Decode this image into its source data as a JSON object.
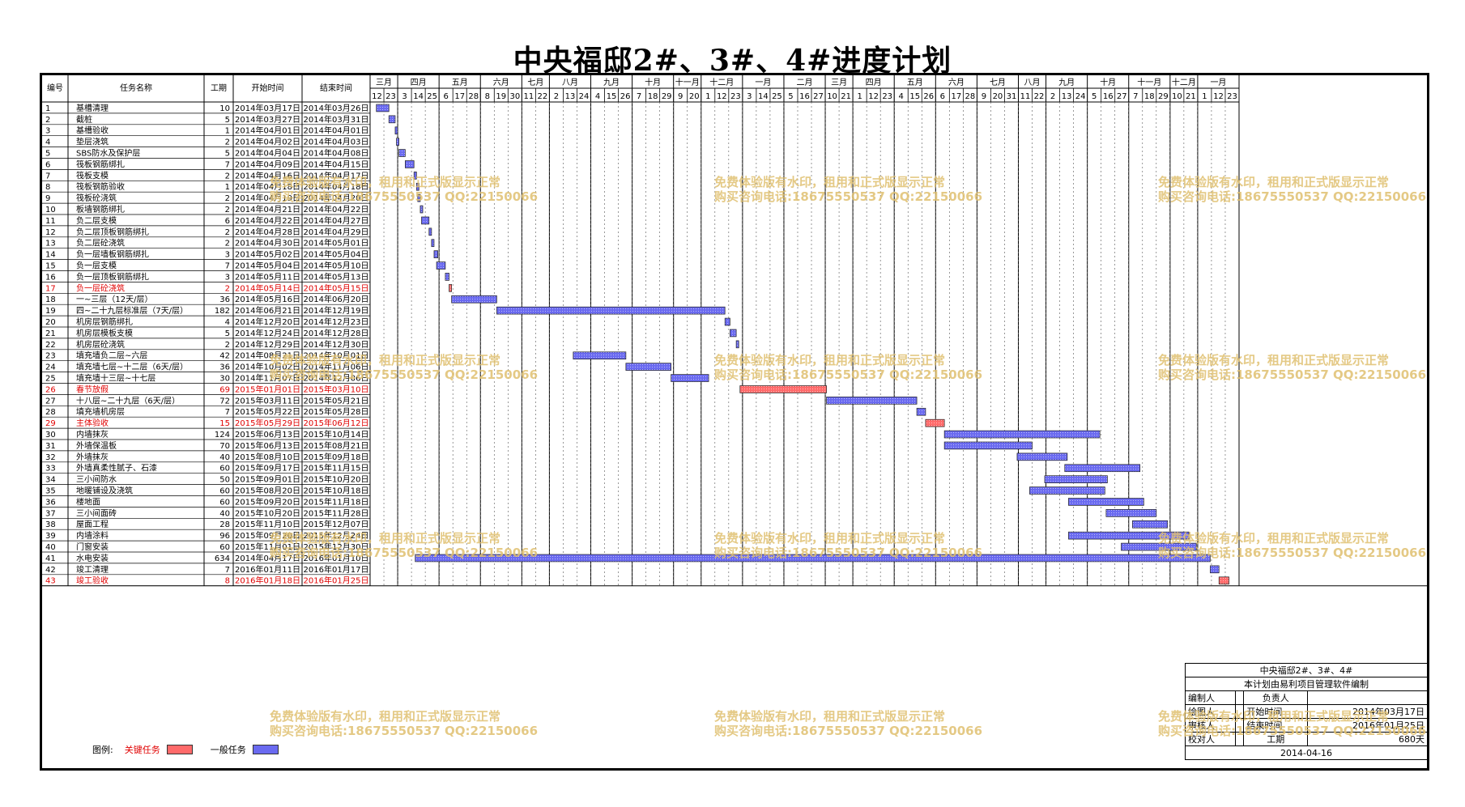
{
  "title": "中央福邸2#、3#、4#进度计划",
  "columns": {
    "no": "编号",
    "name": "任务名称",
    "dur": "工期",
    "start": "开始时间",
    "end": "结束时间"
  },
  "timeline": {
    "start_date": "2014-03-12",
    "months": [
      {
        "label": "三月",
        "days": [
          "12",
          "23"
        ]
      },
      {
        "label": "四月",
        "days": [
          "3",
          "14",
          "25"
        ]
      },
      {
        "label": "五月",
        "days": [
          "6",
          "17",
          "28"
        ]
      },
      {
        "label": "六月",
        "days": [
          "8",
          "19",
          "30"
        ]
      },
      {
        "label": "七月",
        "days": [
          "11",
          "22"
        ]
      },
      {
        "label": "八月",
        "days": [
          "2",
          "13",
          "24"
        ]
      },
      {
        "label": "九月",
        "days": [
          "4",
          "15",
          "26"
        ]
      },
      {
        "label": "十月",
        "days": [
          "7",
          "18",
          "29"
        ]
      },
      {
        "label": "十一月",
        "days": [
          "9",
          "20"
        ]
      },
      {
        "label": "十二月",
        "days": [
          "1",
          "12",
          "23"
        ]
      },
      {
        "label": "一月",
        "days": [
          "3",
          "14",
          "25"
        ]
      },
      {
        "label": "二月",
        "days": [
          "5",
          "16",
          "27"
        ]
      },
      {
        "label": "三月",
        "days": [
          "10",
          "21"
        ]
      },
      {
        "label": "四月",
        "days": [
          "1",
          "12",
          "23"
        ]
      },
      {
        "label": "五月",
        "days": [
          "4",
          "15",
          "26"
        ]
      },
      {
        "label": "六月",
        "days": [
          "6",
          "17",
          "28"
        ]
      },
      {
        "label": "七月",
        "days": [
          "9",
          "20",
          "31"
        ]
      },
      {
        "label": "八月",
        "days": [
          "11",
          "22"
        ]
      },
      {
        "label": "九月",
        "days": [
          "2",
          "13",
          "24"
        ]
      },
      {
        "label": "十月",
        "days": [
          "5",
          "16",
          "27"
        ]
      },
      {
        "label": "十一月",
        "days": [
          "7",
          "18",
          "29"
        ]
      },
      {
        "label": "十二月",
        "days": [
          "10",
          "21"
        ]
      },
      {
        "label": "一月",
        "days": [
          "1",
          "12",
          "23"
        ]
      }
    ]
  },
  "tasks": [
    {
      "no": "1",
      "name": "基槽清理",
      "dur": "10",
      "start": "2014年03月17日",
      "end": "2014年03月26日",
      "s": "2014-03-17",
      "e": "2014-03-26",
      "critical": false
    },
    {
      "no": "2",
      "name": "截桩",
      "dur": "5",
      "start": "2014年03月27日",
      "end": "2014年03月31日",
      "s": "2014-03-27",
      "e": "2014-03-31",
      "critical": false
    },
    {
      "no": "3",
      "name": "基槽验收",
      "dur": "1",
      "start": "2014年04月01日",
      "end": "2014年04月01日",
      "s": "2014-04-01",
      "e": "2014-04-01",
      "critical": false
    },
    {
      "no": "4",
      "name": "垫层浇筑",
      "dur": "2",
      "start": "2014年04月02日",
      "end": "2014年04月03日",
      "s": "2014-04-02",
      "e": "2014-04-03",
      "critical": false
    },
    {
      "no": "5",
      "name": "SBS防水及保护层",
      "dur": "5",
      "start": "2014年04月04日",
      "end": "2014年04月08日",
      "s": "2014-04-04",
      "e": "2014-04-08",
      "critical": false
    },
    {
      "no": "6",
      "name": "筏板钢筋绑扎",
      "dur": "7",
      "start": "2014年04月09日",
      "end": "2014年04月15日",
      "s": "2014-04-09",
      "e": "2014-04-15",
      "critical": false
    },
    {
      "no": "7",
      "name": "筏板支模",
      "dur": "2",
      "start": "2014年04月16日",
      "end": "2014年04月17日",
      "s": "2014-04-16",
      "e": "2014-04-17",
      "critical": false
    },
    {
      "no": "8",
      "name": "筏板钢筋验收",
      "dur": "1",
      "start": "2014年04月18日",
      "end": "2014年04月18日",
      "s": "2014-04-18",
      "e": "2014-04-18",
      "critical": false
    },
    {
      "no": "9",
      "name": "筏板砼浇筑",
      "dur": "2",
      "start": "2014年04月19日",
      "end": "2014年04月20日",
      "s": "2014-04-19",
      "e": "2014-04-20",
      "critical": false
    },
    {
      "no": "10",
      "name": "板墙钢筋绑扎",
      "dur": "2",
      "start": "2014年04月21日",
      "end": "2014年04月22日",
      "s": "2014-04-21",
      "e": "2014-04-22",
      "critical": false
    },
    {
      "no": "11",
      "name": "负二层支模",
      "dur": "6",
      "start": "2014年04月22日",
      "end": "2014年04月27日",
      "s": "2014-04-22",
      "e": "2014-04-27",
      "critical": false
    },
    {
      "no": "12",
      "name": "负二层顶板钢筋绑扎",
      "dur": "2",
      "start": "2014年04月28日",
      "end": "2014年04月29日",
      "s": "2014-04-28",
      "e": "2014-04-29",
      "critical": false
    },
    {
      "no": "13",
      "name": "负二层砼浇筑",
      "dur": "2",
      "start": "2014年04月30日",
      "end": "2014年05月01日",
      "s": "2014-04-30",
      "e": "2014-05-01",
      "critical": false
    },
    {
      "no": "14",
      "name": "负一层墙板钢筋绑扎",
      "dur": "3",
      "start": "2014年05月02日",
      "end": "2014年05月04日",
      "s": "2014-05-02",
      "e": "2014-05-04",
      "critical": false
    },
    {
      "no": "15",
      "name": "负一层支模",
      "dur": "7",
      "start": "2014年05月04日",
      "end": "2014年05月10日",
      "s": "2014-05-04",
      "e": "2014-05-10",
      "critical": false
    },
    {
      "no": "16",
      "name": "负一层顶板钢筋绑扎",
      "dur": "3",
      "start": "2014年05月11日",
      "end": "2014年05月13日",
      "s": "2014-05-11",
      "e": "2014-05-13",
      "critical": false
    },
    {
      "no": "17",
      "name": "负一层砼浇筑",
      "dur": "2",
      "start": "2014年05月14日",
      "end": "2014年05月15日",
      "s": "2014-05-14",
      "e": "2014-05-15",
      "critical": true
    },
    {
      "no": "18",
      "name": "一~三层（12天/层）",
      "dur": "36",
      "start": "2014年05月16日",
      "end": "2014年06月20日",
      "s": "2014-05-16",
      "e": "2014-06-20",
      "critical": false
    },
    {
      "no": "19",
      "name": "四~二十九层标准层（7天/层）",
      "dur": "182",
      "start": "2014年06月21日",
      "end": "2014年12月19日",
      "s": "2014-06-21",
      "e": "2014-12-19",
      "critical": false
    },
    {
      "no": "20",
      "name": "机房层钢筋绑扎",
      "dur": "4",
      "start": "2014年12月20日",
      "end": "2014年12月23日",
      "s": "2014-12-20",
      "e": "2014-12-23",
      "critical": false
    },
    {
      "no": "21",
      "name": "机房层模板支模",
      "dur": "5",
      "start": "2014年12月24日",
      "end": "2014年12月28日",
      "s": "2014-12-24",
      "e": "2014-12-28",
      "critical": false
    },
    {
      "no": "22",
      "name": "机房层砼浇筑",
      "dur": "2",
      "start": "2014年12月29日",
      "end": "2014年12月30日",
      "s": "2014-12-29",
      "e": "2014-12-30",
      "critical": false
    },
    {
      "no": "23",
      "name": "填充墙负二层~六层",
      "dur": "42",
      "start": "2014年08月21日",
      "end": "2014年10月01日",
      "s": "2014-08-21",
      "e": "2014-10-01",
      "critical": false
    },
    {
      "no": "24",
      "name": "填充墙七层~十二层（6天/层）",
      "dur": "36",
      "start": "2014年10月02日",
      "end": "2014年11月06日",
      "s": "2014-10-02",
      "e": "2014-11-06",
      "critical": false
    },
    {
      "no": "25",
      "name": "填充墙十三层~十七层",
      "dur": "30",
      "start": "2014年11月07日",
      "end": "2014年12月06日",
      "s": "2014-11-07",
      "e": "2014-12-06",
      "critical": false
    },
    {
      "no": "26",
      "name": "春节放假",
      "dur": "69",
      "start": "2015年01月01日",
      "end": "2015年03月10日",
      "s": "2015-01-01",
      "e": "2015-03-10",
      "critical": true
    },
    {
      "no": "27",
      "name": "十八层~二十九层（6天/层）",
      "dur": "72",
      "start": "2015年03月11日",
      "end": "2015年05月21日",
      "s": "2015-03-11",
      "e": "2015-05-21",
      "critical": false
    },
    {
      "no": "28",
      "name": "填充墙机房层",
      "dur": "7",
      "start": "2015年05月22日",
      "end": "2015年05月28日",
      "s": "2015-05-22",
      "e": "2015-05-28",
      "critical": false
    },
    {
      "no": "29",
      "name": "主体验收",
      "dur": "15",
      "start": "2015年05月29日",
      "end": "2015年06月12日",
      "s": "2015-05-29",
      "e": "2015-06-12",
      "critical": true
    },
    {
      "no": "30",
      "name": "内墙抹灰",
      "dur": "124",
      "start": "2015年06月13日",
      "end": "2015年10月14日",
      "s": "2015-06-13",
      "e": "2015-10-14",
      "critical": false
    },
    {
      "no": "31",
      "name": "外墙保温板",
      "dur": "70",
      "start": "2015年06月13日",
      "end": "2015年08月21日",
      "s": "2015-06-13",
      "e": "2015-08-21",
      "critical": false
    },
    {
      "no": "32",
      "name": "外墙抹灰",
      "dur": "40",
      "start": "2015年08月10日",
      "end": "2015年09月18日",
      "s": "2015-08-10",
      "e": "2015-09-18",
      "critical": false
    },
    {
      "no": "33",
      "name": "外墙真柔性腻子、石漆",
      "dur": "60",
      "start": "2015年09月17日",
      "end": "2015年11月15日",
      "s": "2015-09-17",
      "e": "2015-11-15",
      "critical": false
    },
    {
      "no": "34",
      "name": "三小间防水",
      "dur": "50",
      "start": "2015年09月01日",
      "end": "2015年10月20日",
      "s": "2015-09-01",
      "e": "2015-10-20",
      "critical": false
    },
    {
      "no": "35",
      "name": "地暖铺设及浇筑",
      "dur": "60",
      "start": "2015年08月20日",
      "end": "2015年10月18日",
      "s": "2015-08-20",
      "e": "2015-10-18",
      "critical": false
    },
    {
      "no": "36",
      "name": "楼地面",
      "dur": "60",
      "start": "2015年09月20日",
      "end": "2015年11月18日",
      "s": "2015-09-20",
      "e": "2015-11-18",
      "critical": false
    },
    {
      "no": "37",
      "name": "三小间面砖",
      "dur": "40",
      "start": "2015年10月20日",
      "end": "2015年11月28日",
      "s": "2015-10-20",
      "e": "2015-11-28",
      "critical": false
    },
    {
      "no": "38",
      "name": "屋面工程",
      "dur": "28",
      "start": "2015年11月10日",
      "end": "2015年12月07日",
      "s": "2015-11-10",
      "e": "2015-12-07",
      "critical": false
    },
    {
      "no": "39",
      "name": "内墙涂料",
      "dur": "96",
      "start": "2015年09月20日",
      "end": "2015年12月24日",
      "s": "2015-09-20",
      "e": "2015-12-24",
      "critical": false
    },
    {
      "no": "40",
      "name": "门窗安装",
      "dur": "60",
      "start": "2015年11月01日",
      "end": "2015年12月30日",
      "s": "2015-11-01",
      "e": "2015-12-30",
      "critical": false
    },
    {
      "no": "41",
      "name": "水电安装",
      "dur": "634",
      "start": "2014年04月17日",
      "end": "2016年01月10日",
      "s": "2014-04-17",
      "e": "2016-01-10",
      "critical": false
    },
    {
      "no": "42",
      "name": "竣工清理",
      "dur": "7",
      "start": "2016年01月11日",
      "end": "2016年01月17日",
      "s": "2016-01-11",
      "e": "2016-01-17",
      "critical": false
    },
    {
      "no": "43",
      "name": "竣工验收",
      "dur": "8",
      "start": "2016年01月18日",
      "end": "2016年01月25日",
      "s": "2016-01-18",
      "e": "2016-01-25",
      "critical": true
    }
  ],
  "legend": {
    "label": "图例:",
    "critical": "关键任务",
    "general": "一般任务"
  },
  "colors": {
    "critical": "#ff6a6a",
    "general": "#6a6af0",
    "critical_text": "#e00000",
    "watermark": "#e0c070"
  },
  "info": {
    "title": "中央福邸2#、3#、4#",
    "footer_note": "本计划由易利项目管理软件编制",
    "compiler_label": "编制人",
    "compiler": "",
    "drawer_label": "绘图人",
    "reviewer_label": "审核人",
    "checker_label": "校对人",
    "owner_label": "负责人",
    "owner": "",
    "start_label": "开始时间",
    "start": "2014年03月17日",
    "end_label": "结束时间",
    "end": "2016年01月25日",
    "duration_label": "工期",
    "duration": "680天",
    "date": "2014-04-16"
  },
  "watermark": {
    "line1": "免费体验版有水印，租用和正式版显示正常",
    "line2": "购买咨询电话:18675550537 QQ:22150066"
  }
}
